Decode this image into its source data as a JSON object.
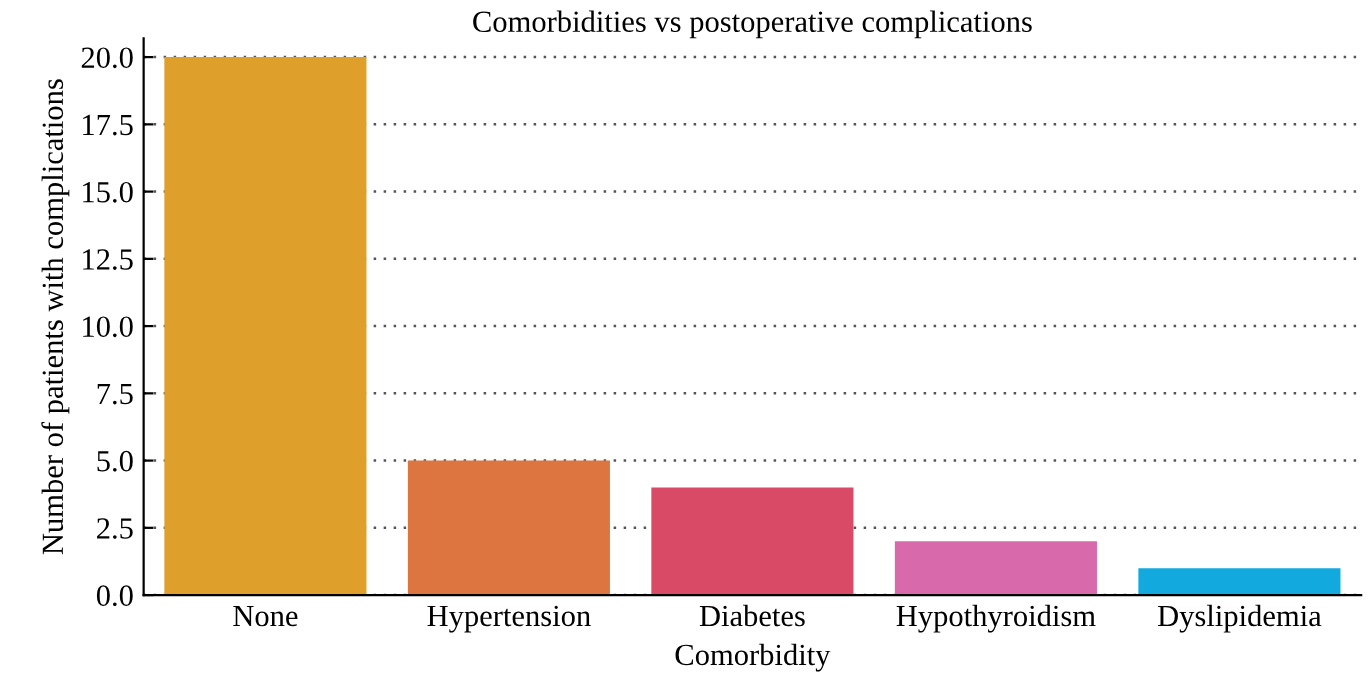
{
  "chart_data": {
    "type": "bar",
    "title": "Comorbidities vs postoperative complications",
    "xlabel": "Comorbidity",
    "ylabel": "Number of patients with complications",
    "categories": [
      "None",
      "Hypertension",
      "Diabetes",
      "Hypothyroidism",
      "Dyslipidemia"
    ],
    "values": [
      20,
      5,
      4,
      2,
      1
    ],
    "colors": [
      "#dea02b",
      "#dc7540",
      "#d84a65",
      "#d86aab",
      "#12a9df"
    ],
    "ylim": [
      0,
      20.7
    ],
    "yticks": [
      {
        "value": 0,
        "label": "0.0"
      },
      2.5,
      {
        "value": 5,
        "label": "5.0"
      },
      7.5,
      {
        "value": 10,
        "label": "10.0"
      },
      12.5,
      {
        "value": 15,
        "label": "15.0"
      },
      17.5,
      {
        "value": 20,
        "label": "20.0"
      }
    ],
    "grid": "y"
  }
}
